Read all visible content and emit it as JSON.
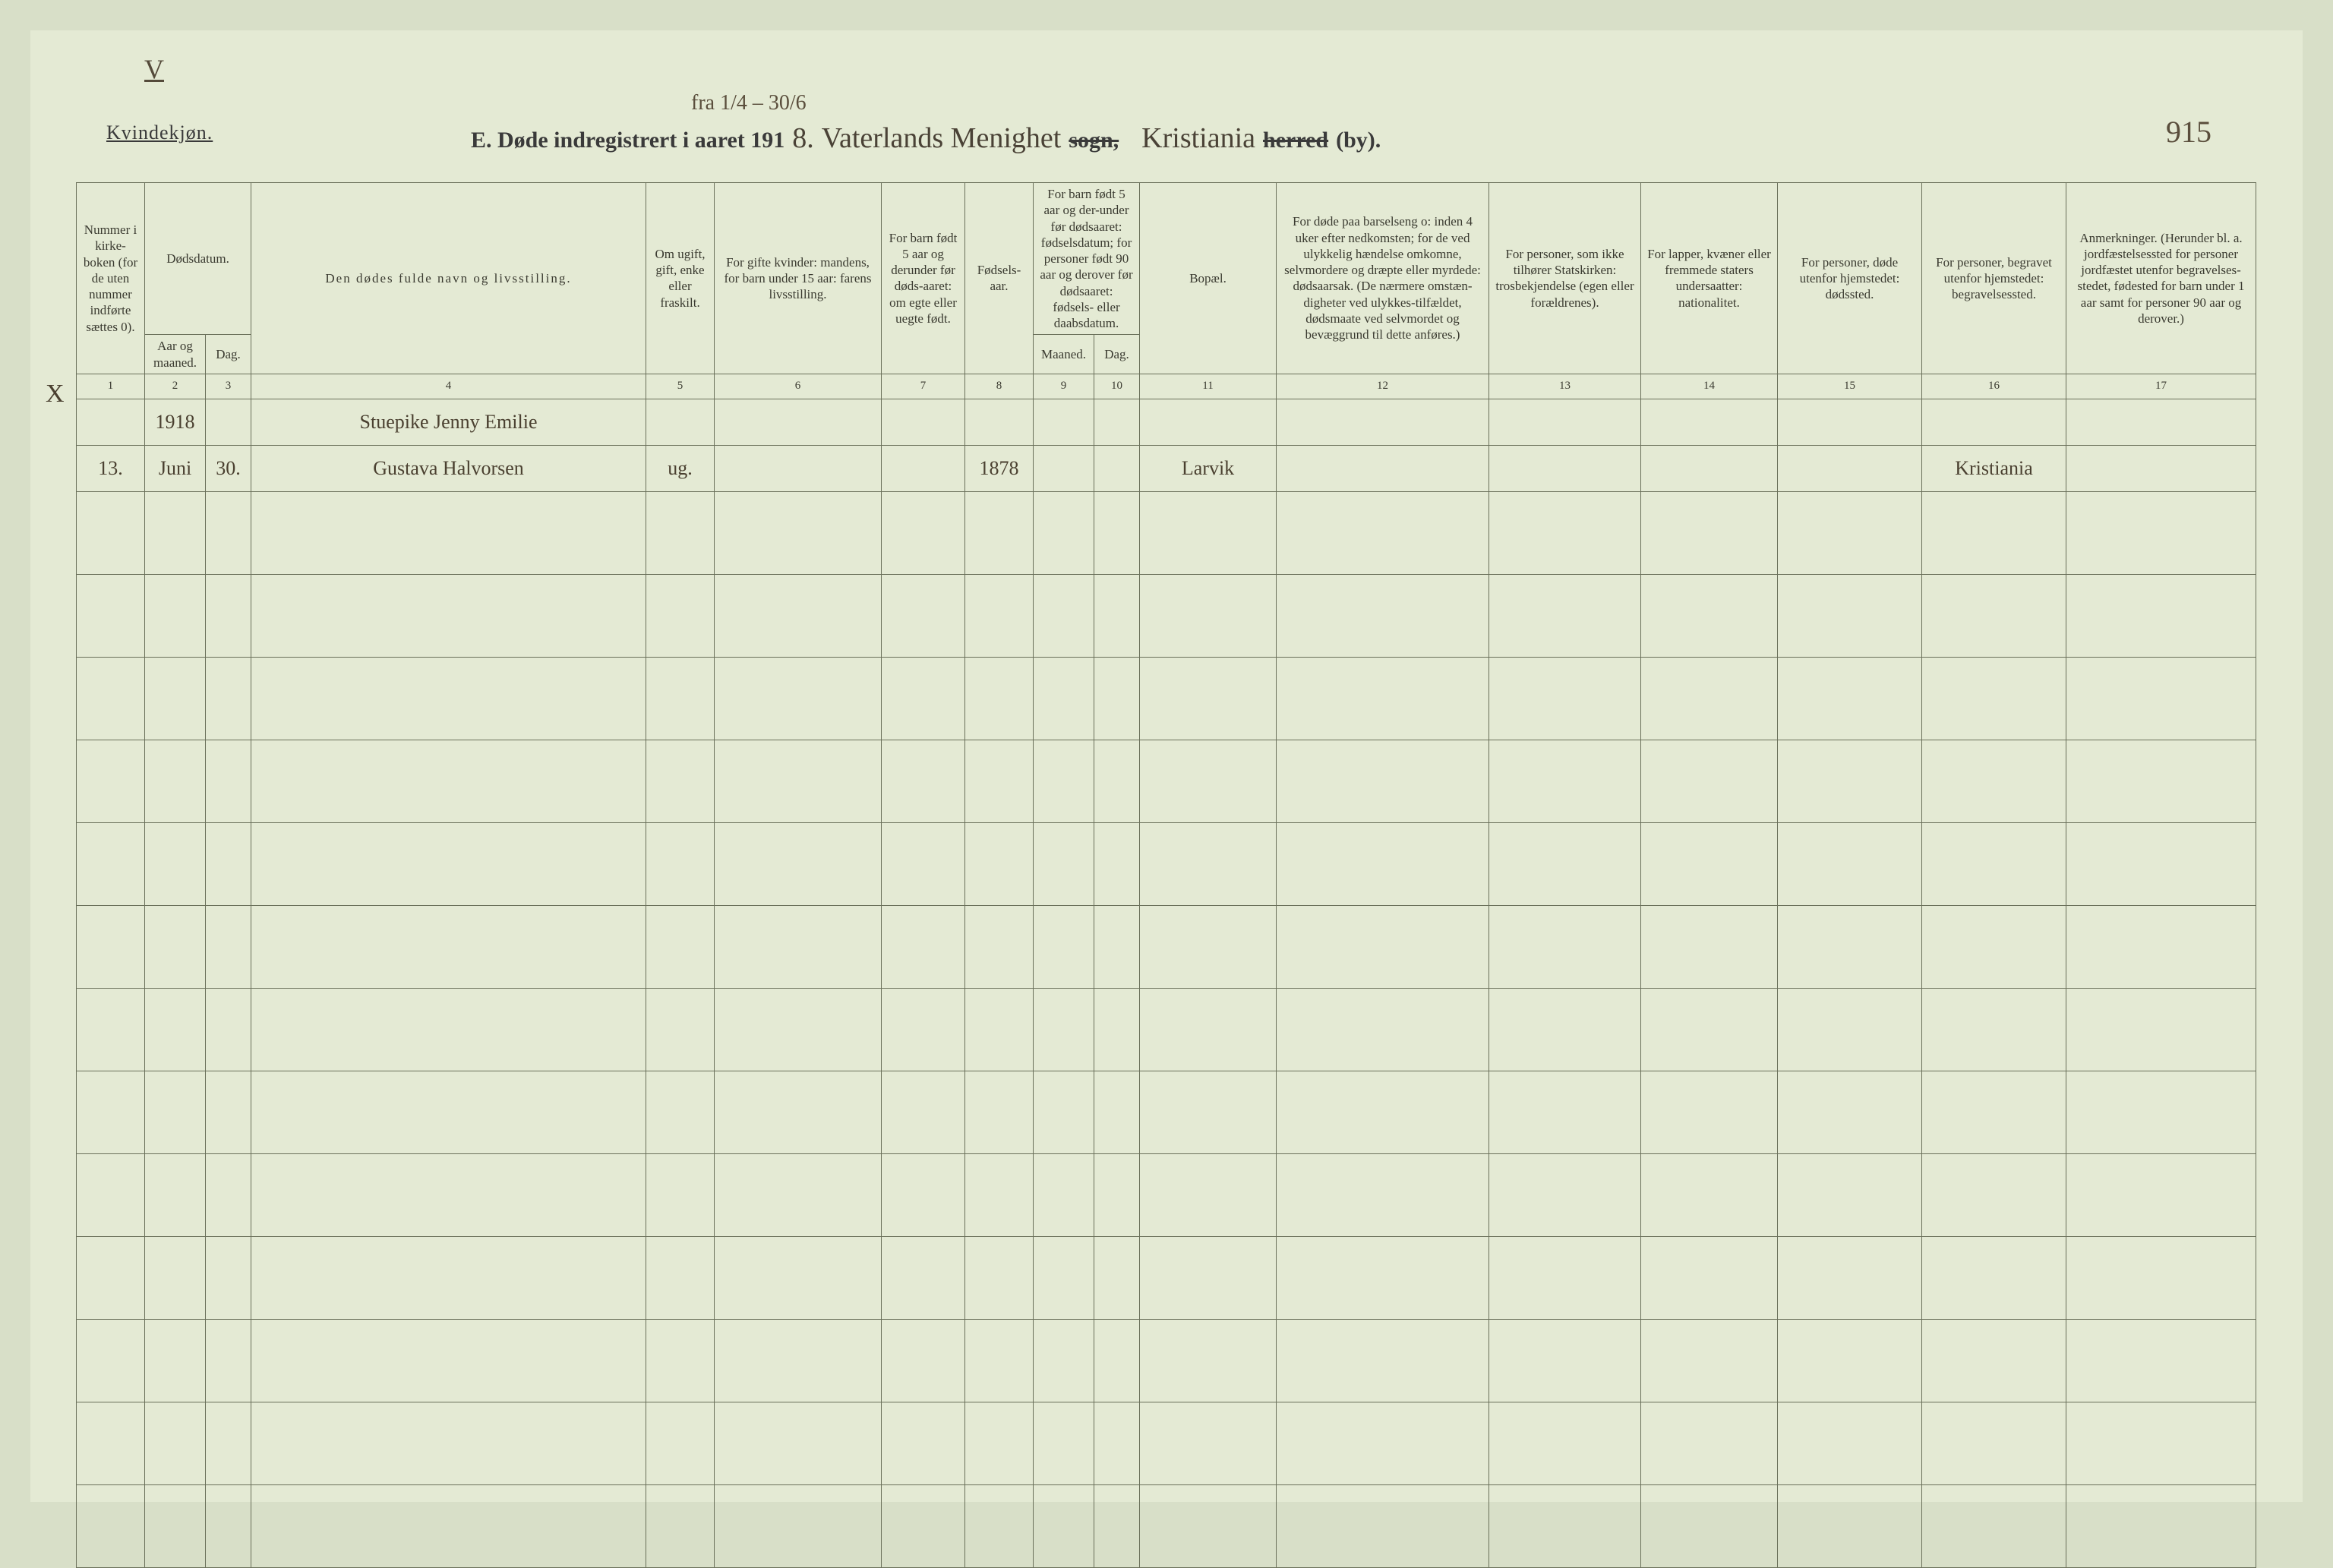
{
  "page": {
    "roman_numeral": "V",
    "gender_label": "Kvindekjøn.",
    "title_prefix": "E.  Døde indregistrert i aaret 191",
    "top_annotation": "fra 1/4 – 30/6",
    "year_suffix": "8.",
    "parish_script": "Vaterlands Menighet",
    "sogn_struck": "sogn,",
    "city_script": "Kristiania",
    "herred_struck": "herred",
    "by_printed": "(by).",
    "page_number_script": "915",
    "margin_mark": "X"
  },
  "columns": {
    "c1": "Nummer i kirke-boken (for de uten nummer indførte sættes 0).",
    "c2_top": "Dødsdatum.",
    "c2_sub_a": "Aar og maaned.",
    "c2_sub_b": "Dag.",
    "c4": "Den dødes fulde navn og livsstilling.",
    "c5": "Om ugift, gift, enke eller fraskilt.",
    "c6": "For gifte kvinder: mandens, for barn under 15 aar: farens livsstilling.",
    "c7": "For barn født 5 aar og derunder før døds-aaret: om egte eller uegte født.",
    "c8": "Fødsels-aar.",
    "c9_top": "For barn født 5 aar og der-under før dødsaaret: fødselsdatum; for personer født 90 aar og derover før dødsaaret: fødsels- eller daabsdatum.",
    "c9_sub_a": "Maaned.",
    "c9_sub_b": "Dag.",
    "c11": "Bopæl.",
    "c12": "For døde paa barselseng o: inden 4 uker efter nedkomsten; for de ved ulykkelig hændelse omkomne, selvmordere og dræpte eller myrdede: dødsaarsak. (De nærmere omstæn-digheter ved ulykkes-tilfældet, dødsmaate ved selvmordet og bevæggrund til dette anføres.)",
    "c13": "For personer, som ikke tilhører Statskirken: trosbekjendelse (egen eller forældrenes).",
    "c14": "For lapper, kvæner eller fremmede staters undersaatter: nationalitet.",
    "c15": "For personer, døde utenfor hjemstedet: dødssted.",
    "c16": "For personer, begravet utenfor hjemstedet: begravelsessted.",
    "c17": "Anmerkninger. (Herunder bl. a. jordfæstelsessted for personer jordfæstet utenfor begravelses-stedet, fødested for barn under 1 aar samt for personer 90 aar og derover.)"
  },
  "colnums": [
    "1",
    "2",
    "3",
    "4",
    "5",
    "6",
    "7",
    "8",
    "9",
    "10",
    "11",
    "12",
    "13",
    "14",
    "15",
    "16",
    "17"
  ],
  "rows": [
    {
      "num": "",
      "year_month": "1918",
      "day": "",
      "name": "Stuepike Jenny Emilie",
      "status": "",
      "spouse": "",
      "legitimacy": "",
      "birth_year": "",
      "birth_month": "",
      "birth_day": "",
      "residence": "",
      "cause": "",
      "faith": "",
      "nationality": "",
      "death_place": "",
      "burial_place": "",
      "remarks": ""
    },
    {
      "num": "13.",
      "year_month": "Juni",
      "day": "30.",
      "name": "Gustava Halvorsen",
      "status": "ug.",
      "spouse": "",
      "legitimacy": "",
      "birth_year": "1878",
      "birth_month": "",
      "birth_day": "",
      "residence": "Larvik",
      "cause": "",
      "faith": "",
      "nationality": "",
      "death_place": "",
      "burial_place": "Kristiania",
      "remarks": ""
    }
  ],
  "style": {
    "background_page": "#e4ead4",
    "border_color": "#6a705a",
    "script_color": "#4a4030",
    "blank_rows": 13
  }
}
